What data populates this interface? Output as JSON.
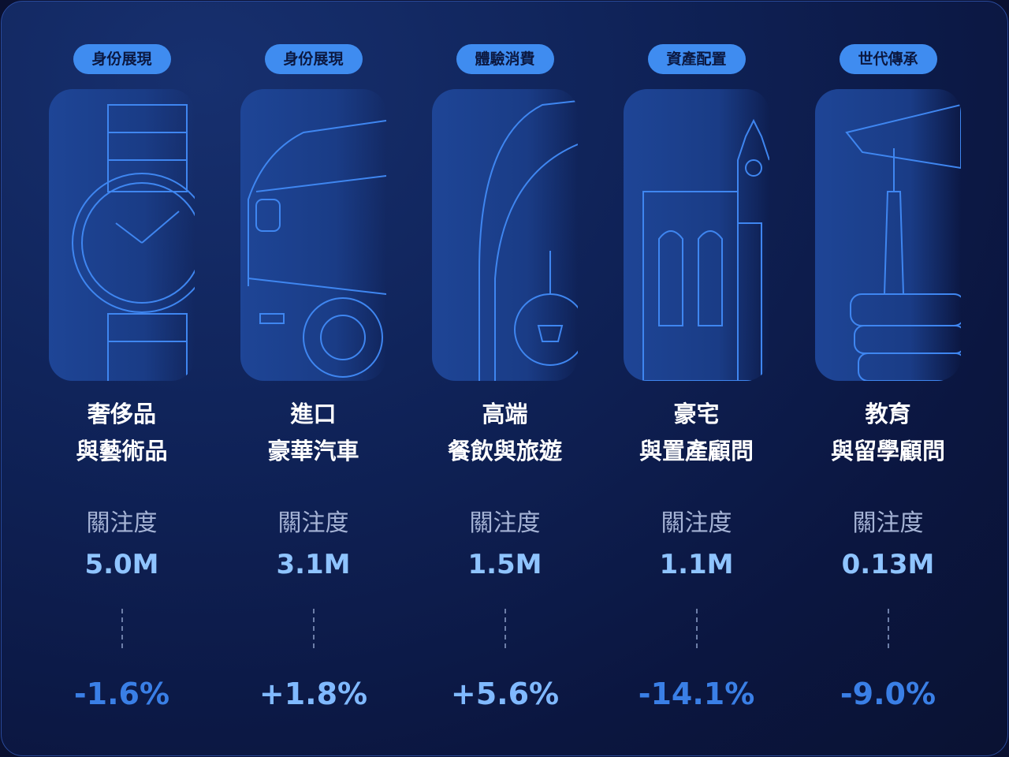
{
  "cards": [
    {
      "tag": "身份展現",
      "title": [
        "奢侈品",
        "與藝術品"
      ],
      "metric_label": "關注度",
      "value": "5.0M",
      "change": "-1.6%"
    },
    {
      "tag": "身份展現",
      "title": [
        "進口",
        "豪華汽車"
      ],
      "metric_label": "關注度",
      "value": "3.1M",
      "change": "+1.8%"
    },
    {
      "tag": "體驗消費",
      "title": [
        "高端",
        "餐飲與旅遊"
      ],
      "metric_label": "關注度",
      "value": "1.5M",
      "change": "+5.6%"
    },
    {
      "tag": "資產配置",
      "title": [
        "豪宅",
        "與置產顧問"
      ],
      "metric_label": "關注度",
      "value": "1.1M",
      "change": "-14.1%"
    },
    {
      "tag": "世代傳承",
      "title": [
        "教育",
        "與留學顧問"
      ],
      "metric_label": "關注度",
      "value": "0.13M",
      "change": "-9.0%"
    }
  ]
}
